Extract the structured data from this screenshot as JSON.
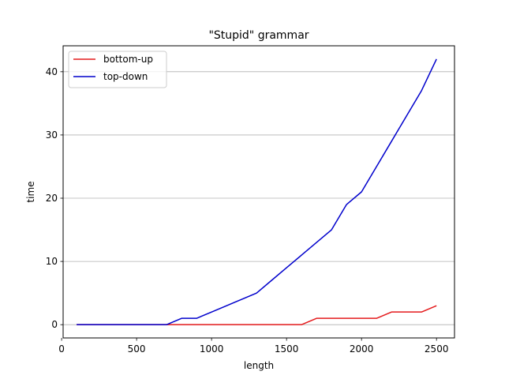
{
  "chart_data": {
    "type": "line",
    "title": "\"Stupid\" grammar",
    "xlabel": "length",
    "ylabel": "time",
    "xlim": [
      10,
      2620
    ],
    "ylim": [
      -2.1,
      44.1
    ],
    "xticks": [
      0,
      500,
      1000,
      1500,
      2000,
      2500
    ],
    "yticks": [
      0,
      10,
      20,
      30,
      40
    ],
    "grid": "y-major",
    "legend_position": "top-left",
    "series": [
      {
        "name": "bottom-up",
        "color": "#e41a1c",
        "x": [
          100,
          200,
          300,
          400,
          500,
          600,
          700,
          800,
          900,
          1000,
          1100,
          1200,
          1300,
          1400,
          1500,
          1600,
          1700,
          1800,
          1900,
          2000,
          2100,
          2200,
          2300,
          2400,
          2500
        ],
        "y": [
          0,
          0,
          0,
          0,
          0,
          0,
          0,
          0,
          0,
          0,
          0,
          0,
          0,
          0,
          0,
          0,
          1,
          1,
          1,
          1,
          1,
          2,
          2,
          2,
          3
        ]
      },
      {
        "name": "top-down",
        "color": "#0000cc",
        "x": [
          100,
          200,
          300,
          400,
          500,
          600,
          700,
          800,
          900,
          1000,
          1100,
          1200,
          1300,
          1400,
          1500,
          1600,
          1700,
          1800,
          1900,
          2000,
          2100,
          2200,
          2300,
          2400,
          2500
        ],
        "y": [
          0,
          0,
          0,
          0,
          0,
          0,
          0,
          1,
          1,
          2,
          3,
          4,
          5,
          7,
          9,
          11,
          13,
          15,
          19,
          21,
          25,
          29,
          33,
          37,
          42
        ]
      }
    ]
  }
}
